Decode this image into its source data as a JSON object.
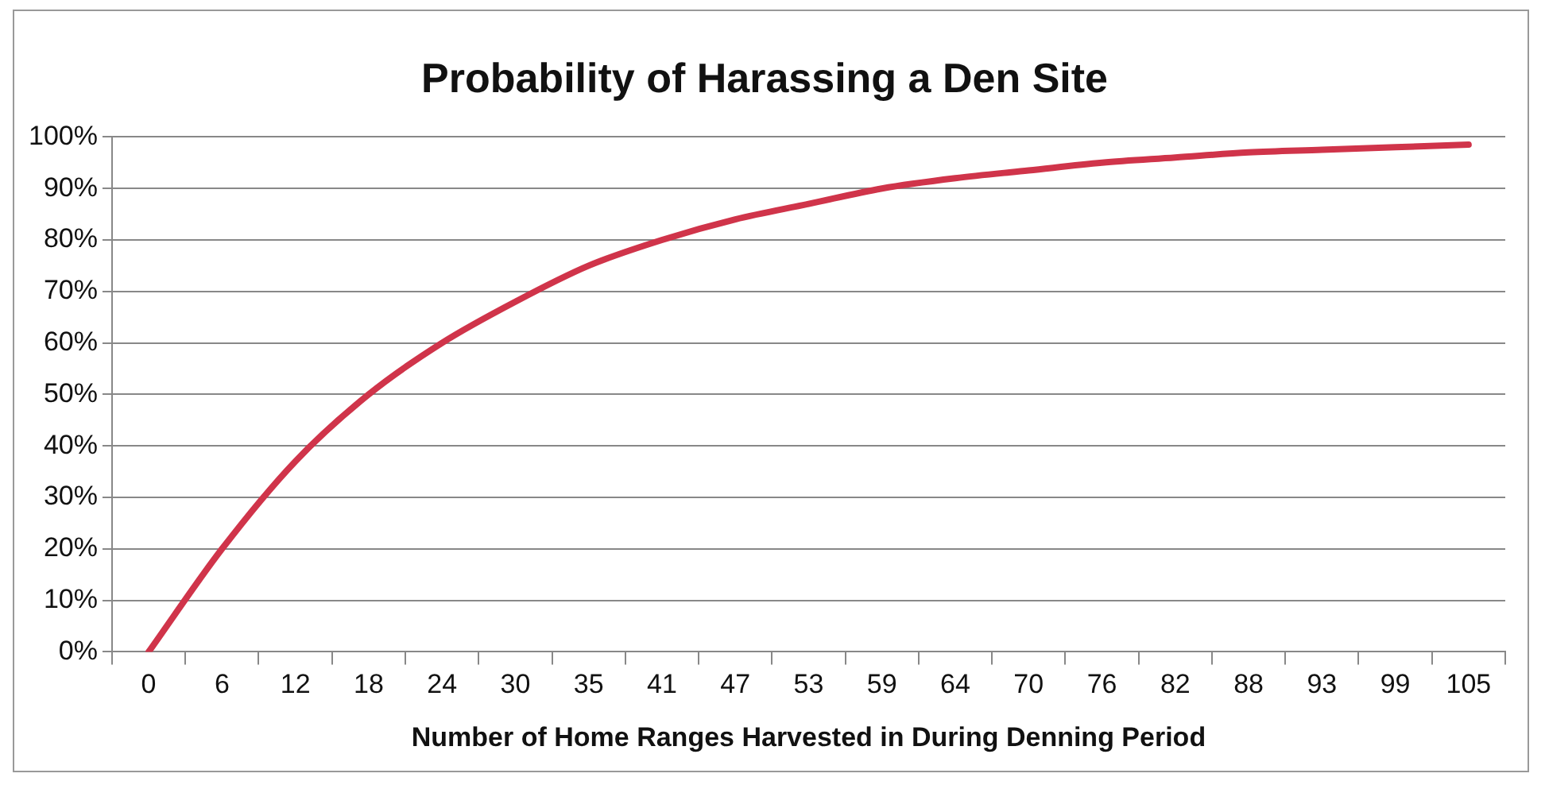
{
  "chart_data": {
    "type": "line",
    "title": "Probability of Harassing a Den Site",
    "xlabel": "Number of Home Ranges Harvested in During Denning Period",
    "categories": [
      "0",
      "6",
      "12",
      "18",
      "24",
      "30",
      "35",
      "41",
      "47",
      "53",
      "59",
      "64",
      "70",
      "76",
      "82",
      "88",
      "93",
      "99",
      "105"
    ],
    "series": [
      {
        "color": "#d0344a",
        "values": [
          0,
          20,
          37,
          50,
          60,
          68,
          75,
          80,
          84,
          87,
          90,
          92,
          93.5,
          95,
          96,
          97,
          97.5,
          98,
          98.5
        ]
      }
    ],
    "ylim": [
      0,
      100
    ],
    "yticks": [
      {
        "value": 0,
        "label": "0%"
      },
      {
        "value": 10,
        "label": "10%"
      },
      {
        "value": 20,
        "label": "20%"
      },
      {
        "value": 30,
        "label": "30%"
      },
      {
        "value": 40,
        "label": "40%"
      },
      {
        "value": 50,
        "label": "50%"
      },
      {
        "value": 60,
        "label": "60%"
      },
      {
        "value": 70,
        "label": "70%"
      },
      {
        "value": 80,
        "label": "80%"
      },
      {
        "value": 90,
        "label": "90%"
      },
      {
        "value": 100,
        "label": "100%"
      }
    ],
    "grid": "y",
    "legend": false,
    "marker": "none",
    "line_style": "solid"
  }
}
